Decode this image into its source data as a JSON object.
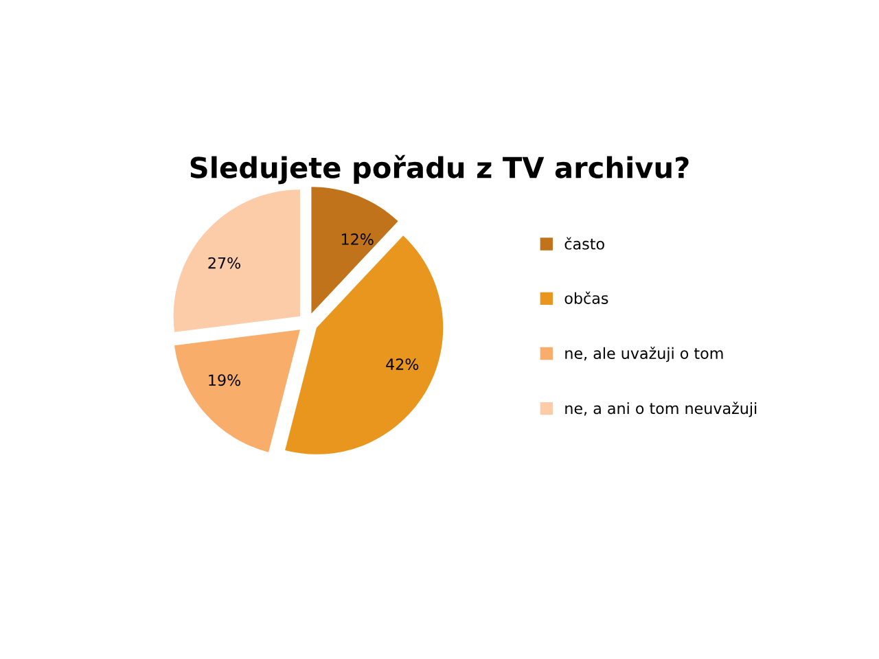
{
  "chart_data": {
    "type": "pie",
    "title": "Sledujete pořadu z TV archivu?",
    "categories": [
      "často",
      "občas",
      "ne, ale uvažuji o tom",
      "ne, a ani o tom neuvažuji"
    ],
    "values": [
      12,
      42,
      19,
      27
    ],
    "value_labels": [
      "12%",
      "42%",
      "19%",
      "27%"
    ],
    "colors": [
      "#c0731a",
      "#e8961e",
      "#f8ad6a",
      "#fccba8"
    ],
    "legend": "right"
  }
}
